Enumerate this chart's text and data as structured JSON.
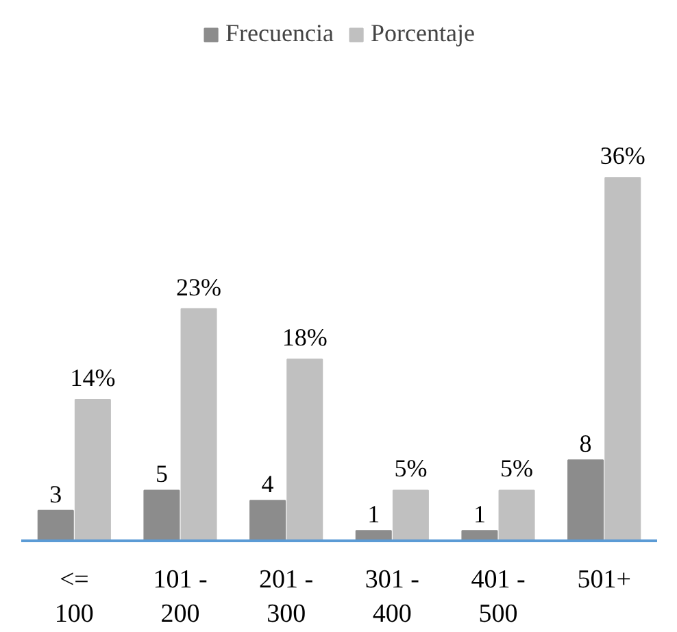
{
  "chart_data": {
    "type": "bar",
    "categories": [
      "<=\n100",
      "101 -\n200",
      "201 -\n300",
      "301 -\n400",
      "401 -\n500",
      "501+"
    ],
    "series": [
      {
        "name": "Frecuencia",
        "color": "#8c8c8c",
        "values": [
          3,
          5,
          4,
          1,
          1,
          8
        ],
        "value_labels": [
          "3",
          "5",
          "4",
          "1",
          "1",
          "8"
        ]
      },
      {
        "name": "Porcentaje",
        "color": "#c0c0c0",
        "values": [
          14,
          23,
          18,
          5,
          5,
          36
        ],
        "value_labels": [
          "14%",
          "23%",
          "18%",
          "5%",
          "5%",
          "36%"
        ]
      }
    ],
    "legend": "top",
    "grid": false,
    "tick_labels": "x"
  }
}
